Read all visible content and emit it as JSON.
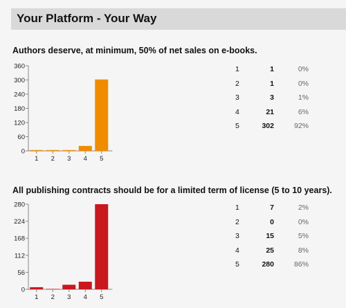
{
  "header": {
    "title": "Your Platform - Your Way"
  },
  "colors": {
    "banner": "#d9d9d9",
    "q1_bar": "#f08c00",
    "q2_bar": "#c8191e",
    "axis": "#888888"
  },
  "questions": [
    {
      "title": "Authors deserve, at minimum, 50% of net sales on e-books.",
      "stats": [
        {
          "rating": "1",
          "count": "1",
          "percent": "0%"
        },
        {
          "rating": "2",
          "count": "1",
          "percent": "0%"
        },
        {
          "rating": "3",
          "count": "3",
          "percent": "1%"
        },
        {
          "rating": "4",
          "count": "21",
          "percent": "6%"
        },
        {
          "rating": "5",
          "count": "302",
          "percent": "92%"
        }
      ]
    },
    {
      "title": "All publishing contracts should be for a limited term of license (5 to 10 years).",
      "stats": [
        {
          "rating": "1",
          "count": "7",
          "percent": "2%"
        },
        {
          "rating": "2",
          "count": "0",
          "percent": "0%"
        },
        {
          "rating": "3",
          "count": "15",
          "percent": "5%"
        },
        {
          "rating": "4",
          "count": "25",
          "percent": "8%"
        },
        {
          "rating": "5",
          "count": "280",
          "percent": "86%"
        }
      ]
    }
  ],
  "chart_data": [
    {
      "type": "bar",
      "title": "Authors deserve, at minimum, 50% of net sales on e-books.",
      "categories": [
        "1",
        "2",
        "3",
        "4",
        "5"
      ],
      "values": [
        1,
        1,
        3,
        21,
        302
      ],
      "ylim": [
        0,
        360
      ],
      "yticks": [
        0,
        60,
        120,
        180,
        240,
        300,
        360
      ],
      "color": "#f08c00",
      "grid": false,
      "legend": "none"
    },
    {
      "type": "bar",
      "title": "All publishing contracts should be for a limited term of license (5 to 10 years).",
      "categories": [
        "1",
        "2",
        "3",
        "4",
        "5"
      ],
      "values": [
        7,
        0,
        15,
        25,
        280
      ],
      "ylim": [
        0,
        280
      ],
      "yticks": [
        0,
        56,
        112,
        168,
        224,
        280
      ],
      "color": "#c8191e",
      "grid": false,
      "legend": "none"
    }
  ]
}
